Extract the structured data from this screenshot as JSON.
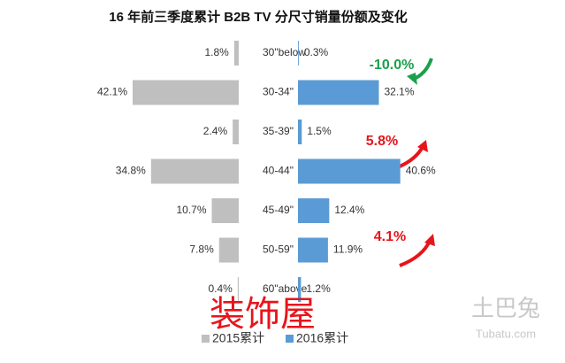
{
  "chart_data": {
    "type": "butterfly",
    "title": "16 年前三季度累计 B2B TV 分尺寸销量份额及变化",
    "categories": [
      "30\"below",
      "30-34\"",
      "35-39\"",
      "40-44\"",
      "45-49\"",
      "50-59\"",
      "60\"above"
    ],
    "series": [
      {
        "name": "2015累计",
        "color": "#bfbfbf",
        "side": "left",
        "values": [
          1.8,
          42.1,
          2.4,
          34.8,
          10.7,
          7.8,
          0.4
        ],
        "value_labels": [
          "1.8%",
          "42.1%",
          "2.4%",
          "34.8%",
          "10.7%",
          "7.8%",
          "0.4%"
        ]
      },
      {
        "name": "2016累计",
        "color": "#5b9bd5",
        "side": "right",
        "values": [
          0.3,
          32.1,
          1.5,
          40.6,
          12.4,
          11.9,
          1.2
        ],
        "value_labels": [
          "0.3%",
          "32.1%",
          "1.5%",
          "40.6%",
          "12.4%",
          "11.9%",
          "1.2%"
        ]
      }
    ],
    "annotations": [
      {
        "text": "-10.0%",
        "color": "#1aa04a"
      },
      {
        "text": "5.8%",
        "color": "#e8141b"
      },
      {
        "text": "4.1%",
        "color": "#e8141b"
      }
    ],
    "watermarks": [
      "装饰屋",
      "土巴兔",
      "Tubatu.com"
    ],
    "legend": "bottom"
  }
}
